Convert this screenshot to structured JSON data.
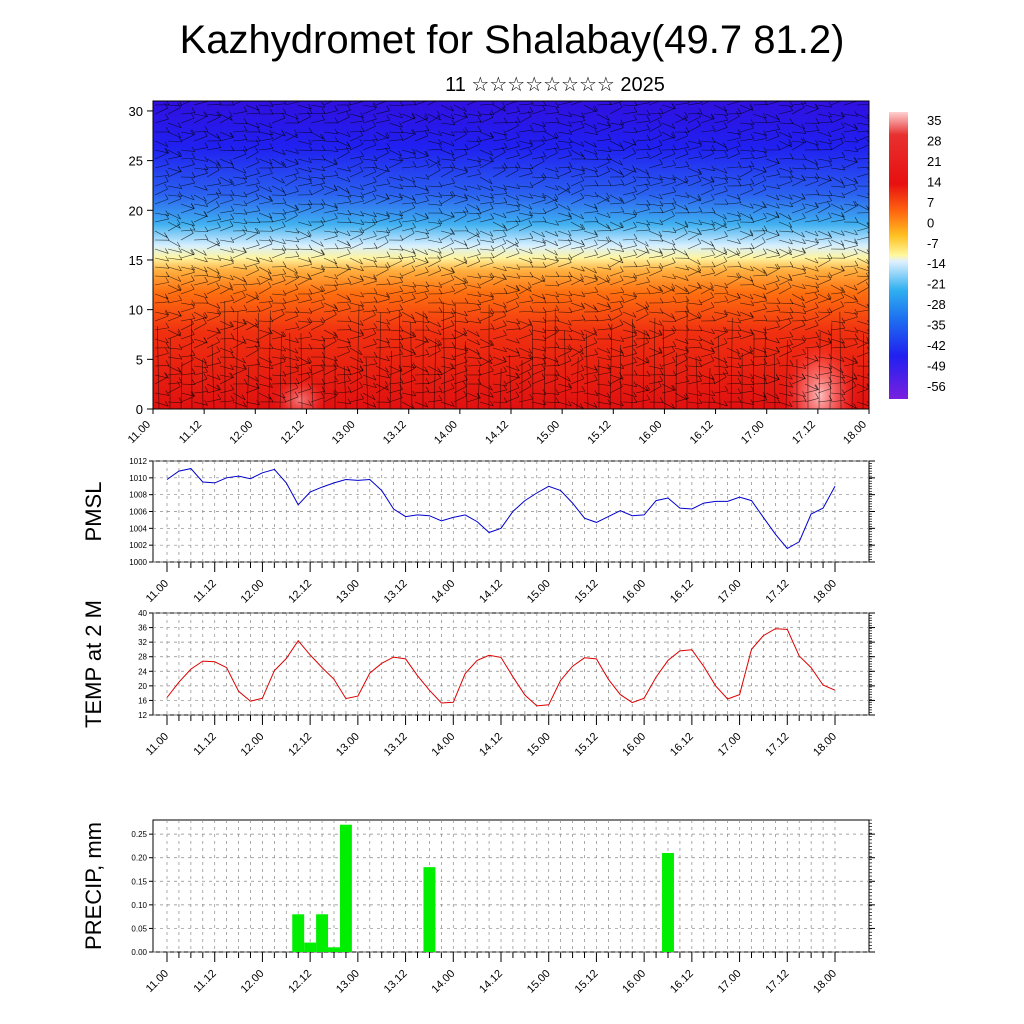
{
  "title": "Kazhydromet for Shalabay(49.7 81.2)",
  "subtitle": "11 ☆☆☆☆☆☆☆☆ 2025",
  "x_tick_labels": [
    "11.00",
    "11.12",
    "12.00",
    "12.12",
    "13.00",
    "13.12",
    "14.00",
    "14.12",
    "15.00",
    "15.12",
    "16.00",
    "16.12",
    "17.00",
    "17.12",
    "18.00"
  ],
  "chart_data": [
    {
      "type": "heatmap",
      "name": "upper-air-section",
      "ylim": [
        0,
        31
      ],
      "y_ticks": [
        0,
        5,
        10,
        15,
        20,
        25,
        30
      ],
      "colorbar_labels": [
        "35",
        "28",
        "21",
        "14",
        "7",
        "0",
        "-7",
        "-14",
        "-21",
        "-28",
        "-35",
        "-42",
        "-49",
        "-56"
      ],
      "colors": {
        "hot": "#e81010",
        "warm": "#ff7a10",
        "yellow": "#fff4a0",
        "cyan": "#3aa8f0",
        "blue": "#2020f0",
        "violet": "#7a20e0"
      }
    },
    {
      "type": "line",
      "ylabel": "PMSL",
      "ylim": [
        1000,
        1012
      ],
      "y_ticks": [
        1000,
        1002,
        1004,
        1006,
        1008,
        1010,
        1012
      ],
      "color": "#0000cc",
      "x_step_hours": 3,
      "values": [
        1009.8,
        1010.8,
        1011.1,
        1009.5,
        1009.4,
        1010.0,
        1010.2,
        1009.9,
        1010.6,
        1011.0,
        1009.4,
        1006.8,
        1008.3,
        1008.9,
        1009.4,
        1009.8,
        1009.7,
        1009.8,
        1008.5,
        1006.3,
        1005.4,
        1005.6,
        1005.5,
        1004.9,
        1005.3,
        1005.6,
        1004.8,
        1003.5,
        1004.0,
        1006.0,
        1007.3,
        1008.2,
        1009.0,
        1008.5,
        1007.0,
        1005.2,
        1004.7,
        1005.4,
        1006.1,
        1005.5,
        1005.6,
        1007.3,
        1007.6,
        1006.4,
        1006.3,
        1007.0,
        1007.2,
        1007.2,
        1007.7,
        1007.3,
        1005.3,
        1003.3,
        1001.6,
        1002.4,
        1005.7,
        1006.4,
        1009.0
      ]
    },
    {
      "type": "line",
      "ylabel": "TEMP at 2 M",
      "ylim": [
        12,
        40
      ],
      "y_ticks": [
        12,
        16,
        20,
        24,
        28,
        32,
        36,
        40
      ],
      "color": "#dd0000",
      "x_step_hours": 3,
      "values": [
        16.8,
        21.0,
        24.6,
        26.8,
        26.6,
        25.0,
        18.5,
        15.8,
        16.6,
        24.2,
        27.5,
        32.4,
        28.5,
        25.0,
        21.8,
        16.5,
        17.2,
        23.5,
        26.2,
        27.9,
        27.4,
        22.8,
        18.8,
        15.3,
        15.5,
        23.4,
        27.0,
        28.4,
        27.8,
        22.5,
        17.5,
        14.5,
        14.8,
        21.5,
        25.4,
        27.7,
        27.4,
        21.8,
        17.6,
        15.4,
        16.6,
        22.4,
        27.0,
        29.6,
        29.9,
        25.3,
        20.0,
        16.4,
        17.6,
        30.0,
        33.8,
        35.7,
        35.5,
        28.2,
        25.0,
        20.2,
        18.8
      ]
    },
    {
      "type": "bar",
      "ylabel": "PRECIP, mm",
      "ylim": [
        0,
        0.28
      ],
      "y_ticks": [
        "0.00",
        "0.05",
        "0.10",
        "0.15",
        "0.20",
        "0.25"
      ],
      "color": "#00ee00",
      "x_step_hours": 3,
      "values": [
        0,
        0,
        0,
        0,
        0,
        0,
        0,
        0,
        0,
        0,
        0,
        0.08,
        0.02,
        0.08,
        0.01,
        0.27,
        0,
        0,
        0,
        0,
        0,
        0,
        0.18,
        0,
        0,
        0,
        0,
        0,
        0,
        0,
        0,
        0,
        0,
        0,
        0,
        0,
        0,
        0,
        0,
        0,
        0,
        0,
        0.21,
        0,
        0,
        0,
        0,
        0,
        0,
        0,
        0,
        0,
        0,
        0,
        0,
        0,
        0
      ]
    }
  ]
}
